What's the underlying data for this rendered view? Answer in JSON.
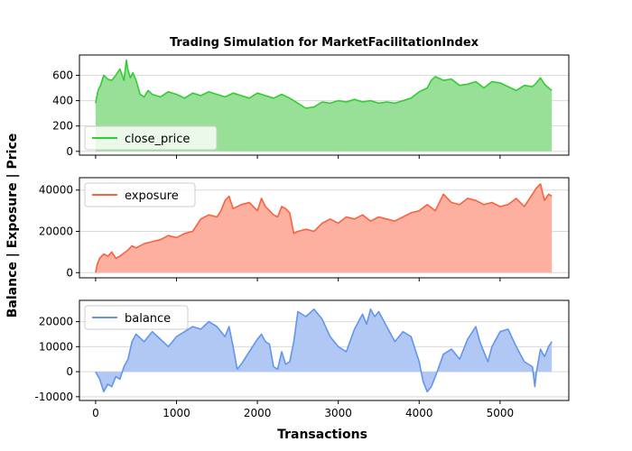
{
  "chart_data": {
    "title": "Trading Simulation for MarketFacilitationIndex",
    "xlabel": "Transactions",
    "ylabel": "Balance | Exposure | Price",
    "xlim": [
      -200,
      5850
    ],
    "x_ticks": [
      0,
      1000,
      2000,
      3000,
      4000,
      5000
    ],
    "panels": [
      {
        "type": "area",
        "series_name": "close_price",
        "color": "#32cd32",
        "fill_color": "#98e098",
        "ylim": [
          -30,
          760
        ],
        "y_ticks": [
          0,
          200,
          400,
          600
        ],
        "legend": "bottom-left",
        "x": [
          0,
          30,
          60,
          100,
          150,
          200,
          250,
          300,
          350,
          380,
          400,
          430,
          460,
          500,
          550,
          600,
          650,
          700,
          800,
          900,
          1000,
          1100,
          1200,
          1300,
          1400,
          1500,
          1600,
          1700,
          1800,
          1900,
          2000,
          2100,
          2200,
          2300,
          2400,
          2500,
          2600,
          2700,
          2800,
          2900,
          3000,
          3100,
          3200,
          3300,
          3400,
          3500,
          3600,
          3700,
          3800,
          3900,
          4000,
          4100,
          4150,
          4200,
          4300,
          4400,
          4500,
          4600,
          4700,
          4800,
          4900,
          5000,
          5100,
          5200,
          5300,
          5400,
          5450,
          5500,
          5550,
          5600,
          5640
        ],
        "values": [
          380,
          480,
          520,
          600,
          570,
          560,
          600,
          650,
          560,
          720,
          640,
          580,
          620,
          560,
          450,
          430,
          480,
          450,
          430,
          470,
          450,
          420,
          460,
          440,
          470,
          450,
          430,
          460,
          440,
          420,
          460,
          440,
          420,
          450,
          420,
          380,
          340,
          350,
          390,
          380,
          400,
          390,
          410,
          390,
          400,
          380,
          390,
          380,
          400,
          420,
          470,
          500,
          560,
          590,
          560,
          570,
          520,
          530,
          550,
          500,
          550,
          540,
          510,
          480,
          520,
          510,
          540,
          580,
          530,
          500,
          480
        ]
      },
      {
        "type": "area",
        "series_name": "exposure",
        "color": "#f9623f",
        "fill_color": "#fdb09f",
        "ylim": [
          -2500,
          46000
        ],
        "y_ticks": [
          0,
          20000,
          40000
        ],
        "legend": "top-left",
        "x": [
          0,
          20,
          50,
          100,
          150,
          200,
          250,
          300,
          400,
          450,
          500,
          600,
          700,
          800,
          900,
          1000,
          1100,
          1200,
          1300,
          1400,
          1500,
          1550,
          1600,
          1650,
          1700,
          1800,
          1900,
          2000,
          2050,
          2100,
          2150,
          2200,
          2250,
          2300,
          2350,
          2400,
          2450,
          2500,
          2600,
          2700,
          2800,
          2900,
          3000,
          3100,
          3200,
          3300,
          3400,
          3500,
          3600,
          3700,
          3800,
          3900,
          4000,
          4100,
          4200,
          4300,
          4400,
          4500,
          4600,
          4700,
          4800,
          4900,
          5000,
          5100,
          5200,
          5300,
          5400,
          5450,
          5500,
          5550,
          5600,
          5640
        ],
        "values": [
          0,
          4000,
          7000,
          9000,
          8000,
          10000,
          7000,
          8000,
          11000,
          13000,
          12000,
          14000,
          15000,
          16000,
          18000,
          17000,
          19000,
          20000,
          26000,
          28000,
          27000,
          30000,
          35000,
          37000,
          31000,
          33000,
          34000,
          30000,
          36000,
          32000,
          30000,
          28000,
          27000,
          32000,
          31000,
          29000,
          19000,
          20000,
          21000,
          20000,
          24000,
          26000,
          24000,
          27000,
          26000,
          28000,
          25000,
          27000,
          26000,
          25000,
          27000,
          29000,
          30000,
          33000,
          30000,
          38000,
          34000,
          33000,
          36000,
          35000,
          33000,
          34000,
          32000,
          33000,
          36000,
          32000,
          38000,
          41000,
          43000,
          35000,
          38000,
          37000
        ]
      },
      {
        "type": "area",
        "series_name": "balance",
        "color": "#6495ed",
        "fill_color": "#b0c8f3",
        "ylim": [
          -11500,
          28500
        ],
        "y_ticks": [
          -10000,
          0,
          10000,
          20000
        ],
        "legend": "top-left",
        "x": [
          0,
          50,
          100,
          150,
          200,
          250,
          300,
          350,
          400,
          450,
          500,
          600,
          700,
          800,
          900,
          1000,
          1100,
          1200,
          1300,
          1400,
          1500,
          1550,
          1600,
          1650,
          1700,
          1750,
          1800,
          1900,
          2000,
          2050,
          2100,
          2150,
          2200,
          2250,
          2300,
          2350,
          2400,
          2450,
          2500,
          2600,
          2700,
          2800,
          2900,
          3000,
          3100,
          3200,
          3300,
          3350,
          3400,
          3450,
          3500,
          3600,
          3700,
          3800,
          3900,
          4000,
          4050,
          4100,
          4150,
          4200,
          4300,
          4400,
          4500,
          4600,
          4700,
          4750,
          4800,
          4850,
          4900,
          5000,
          5100,
          5200,
          5300,
          5400,
          5430,
          5450,
          5500,
          5550,
          5600,
          5640
        ],
        "values": [
          0,
          -3000,
          -8000,
          -5000,
          -6000,
          -2000,
          -3000,
          2000,
          5000,
          12000,
          15000,
          12000,
          16000,
          13000,
          10000,
          14000,
          16000,
          18000,
          17000,
          20000,
          18000,
          16000,
          14000,
          18000,
          10000,
          1000,
          3000,
          8000,
          13000,
          15000,
          12000,
          11000,
          2000,
          1000,
          8000,
          3000,
          4000,
          12000,
          24000,
          22000,
          25000,
          21000,
          14000,
          10000,
          8000,
          17000,
          23000,
          19000,
          25000,
          22000,
          24000,
          18000,
          12000,
          16000,
          14000,
          4000,
          -4000,
          -8000,
          -6000,
          -2000,
          7000,
          9000,
          5000,
          13000,
          18000,
          12000,
          8000,
          4000,
          10000,
          16000,
          17000,
          10000,
          4000,
          2000,
          -6000,
          0,
          9000,
          6000,
          10000,
          12000
        ]
      }
    ]
  }
}
